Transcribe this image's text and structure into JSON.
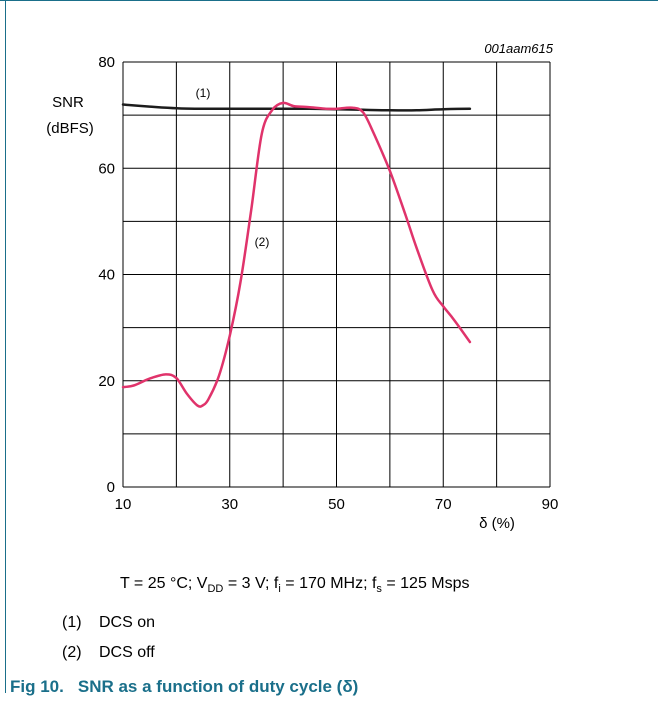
{
  "figure_code": "001aam615",
  "caption": {
    "label": "Fig 10.",
    "text": "SNR as a function of duty cycle (δ)"
  },
  "conditions": {
    "t": "T = 25 °C; V",
    "t_sub": "DD",
    "vdd": " = 3 V; f",
    "fi_sub": "i",
    "fi": " = 170 MHz; f",
    "fs_sub": "s",
    "fs": " = 125 Msps"
  },
  "legend": [
    {
      "key": "(1)",
      "label": "DCS on"
    },
    {
      "key": "(2)",
      "label": "DCS off"
    }
  ],
  "colors": {
    "series1": "#1c1c1c",
    "series2": "#e0336b",
    "caption": "#1a6f8a",
    "frame": "#1a6f8a"
  },
  "chart_data": {
    "type": "line",
    "xlabel": "δ (%)",
    "ylabel_line1": "SNR",
    "ylabel_line2": "(dBFS)",
    "xlim": [
      10,
      90
    ],
    "ylim": [
      0,
      80
    ],
    "xticks": [
      10,
      30,
      50,
      70,
      90
    ],
    "yticks": [
      0,
      20,
      40,
      60,
      80
    ],
    "grid": true,
    "series": [
      {
        "name": "(1)",
        "x": [
          10,
          15,
          20,
          25,
          30,
          35,
          40,
          45,
          50,
          55,
          60,
          65,
          70,
          75
        ],
        "y": [
          72.0,
          71.6,
          71.3,
          71.2,
          71.2,
          71.2,
          71.2,
          71.2,
          71.1,
          71.0,
          70.9,
          70.9,
          71.1,
          71.2
        ]
      },
      {
        "name": "(2)",
        "x": [
          10,
          12,
          15,
          18,
          20,
          22,
          24,
          25,
          26,
          28,
          30,
          32,
          34,
          36,
          38,
          40,
          42,
          45,
          48,
          50,
          53,
          55,
          57,
          60,
          63,
          65,
          68,
          70,
          72,
          75
        ],
        "y": [
          18.8,
          19.1,
          20.4,
          21.2,
          20.5,
          17.5,
          15.3,
          15.4,
          16.5,
          21.0,
          28.5,
          38.5,
          52.0,
          66.5,
          71.0,
          72.3,
          71.7,
          71.5,
          71.2,
          71.2,
          71.4,
          70.5,
          66.5,
          59.5,
          51.0,
          45.0,
          37.0,
          34.0,
          31.5,
          27.3
        ]
      }
    ]
  }
}
